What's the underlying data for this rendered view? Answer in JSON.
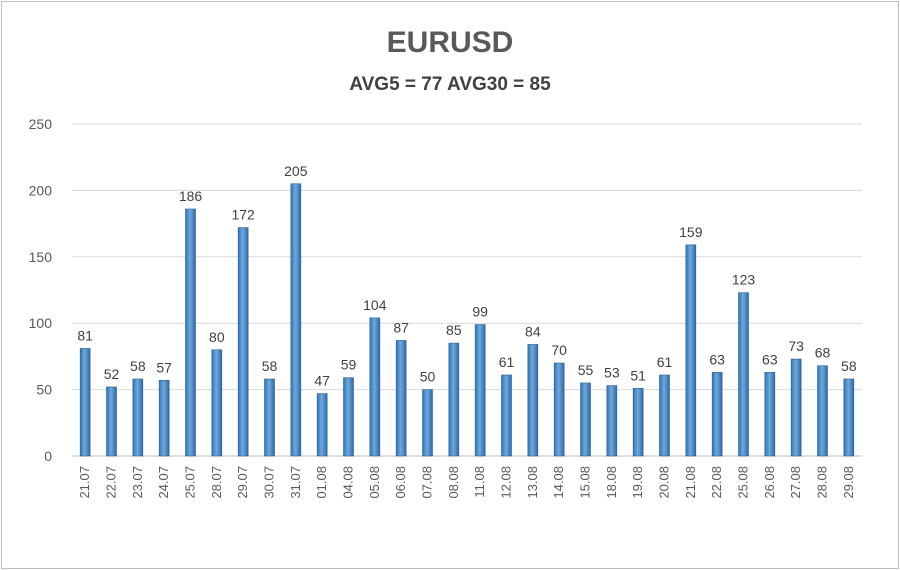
{
  "chart_data": {
    "type": "bar",
    "title": "EURUSD",
    "subtitle": "AVG5 = 77 AVG30 = 85",
    "xlabel": "",
    "ylabel": "",
    "ylim": [
      0,
      250
    ],
    "yticks": [
      "0",
      "50",
      "100",
      "150",
      "200",
      "250"
    ],
    "grid": true,
    "legend": "none",
    "bar_color": "#5b9bd5",
    "categories": [
      "21.07",
      "22.07",
      "23.07",
      "24.07",
      "25.07",
      "28.07",
      "29.07",
      "30.07",
      "31.07",
      "01.08",
      "04.08",
      "05.08",
      "06.08",
      "07.08",
      "08.08",
      "11.08",
      "12.08",
      "13.08",
      "14.08",
      "15.08",
      "18.08",
      "19.08",
      "20.08",
      "21.08",
      "22.08",
      "25.08",
      "26.08",
      "27.08",
      "28.08",
      "29.08"
    ],
    "values": [
      81,
      52,
      58,
      57,
      186,
      80,
      172,
      58,
      205,
      47,
      59,
      104,
      87,
      50,
      85,
      99,
      61,
      84,
      70,
      55,
      53,
      51,
      61,
      159,
      63,
      123,
      63,
      73,
      68,
      58
    ]
  }
}
